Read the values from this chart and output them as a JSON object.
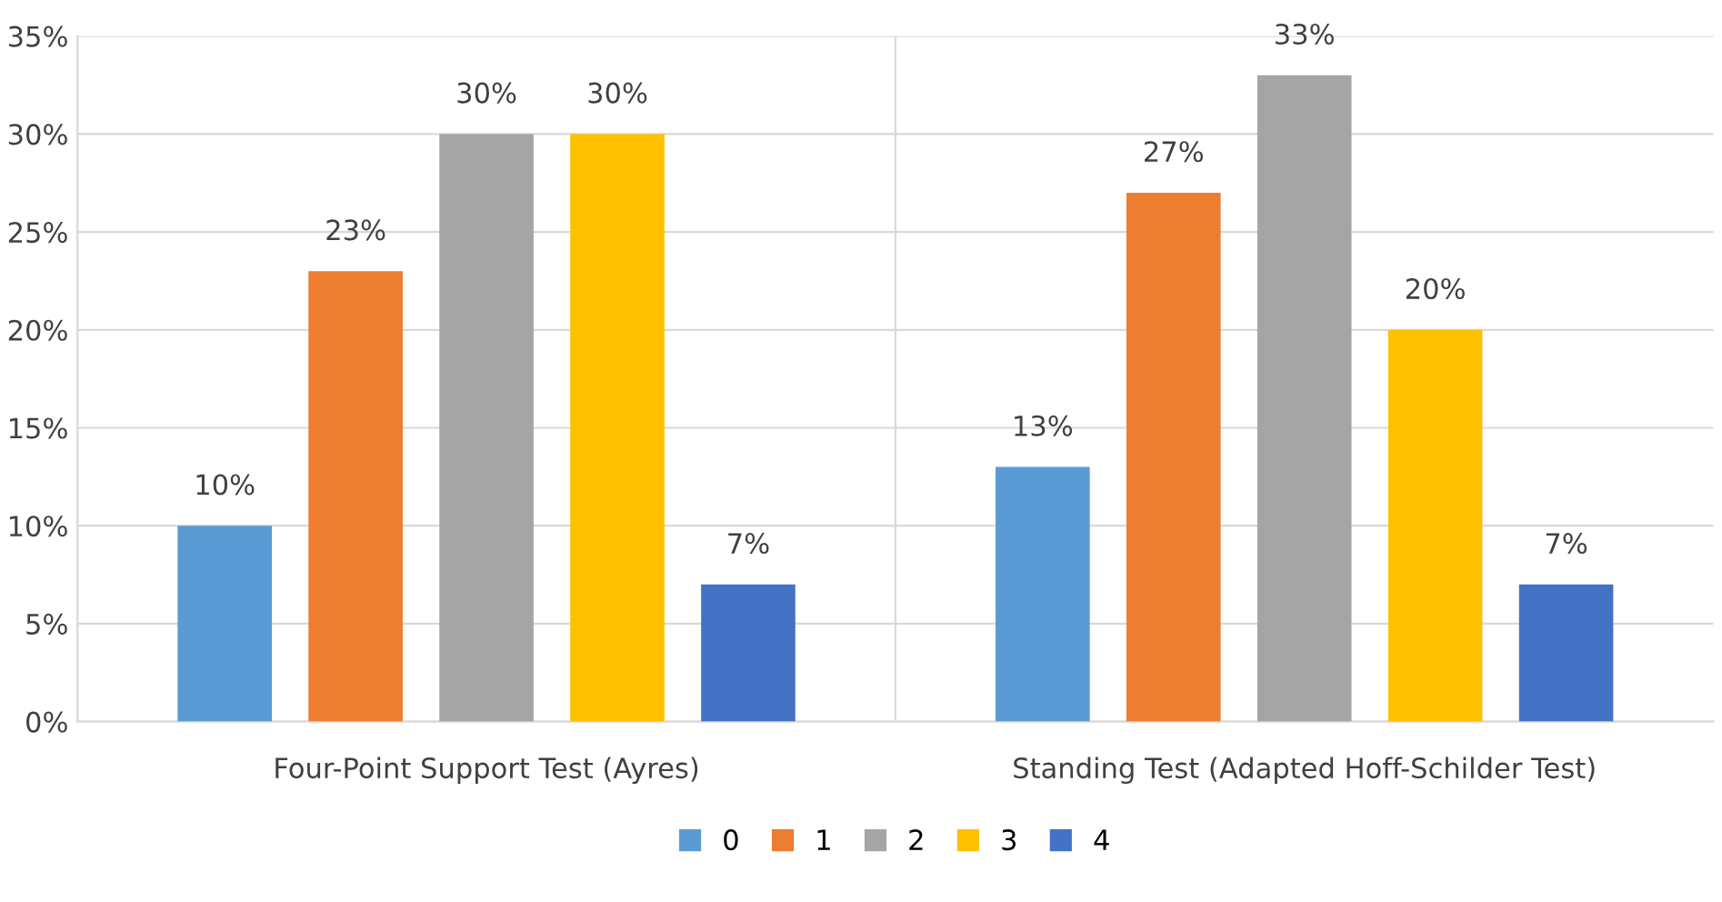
{
  "chart_data": {
    "type": "bar",
    "categories": [
      "Four-Point Support Test (Ayres)",
      "Standing Test (Adapted Hoff-Schilder Test)"
    ],
    "series": [
      {
        "name": "0",
        "color": "#5b9bd5",
        "values": [
          10,
          13
        ],
        "value_labels": [
          "10%",
          "13%"
        ]
      },
      {
        "name": "1",
        "color": "#ed7d31",
        "values": [
          23,
          27
        ],
        "value_labels": [
          "23%",
          "27%"
        ]
      },
      {
        "name": "2",
        "color": "#a5a5a5",
        "values": [
          30,
          33
        ],
        "value_labels": [
          "30%",
          "33%"
        ]
      },
      {
        "name": "3",
        "color": "#ffc000",
        "values": [
          30,
          20
        ],
        "value_labels": [
          "30%",
          "20%"
        ]
      },
      {
        "name": "4",
        "color": "#4472c4",
        "values": [
          7,
          7
        ],
        "value_labels": [
          "7%",
          "7%"
        ]
      }
    ],
    "ylim": [
      0,
      35
    ],
    "yticks": [
      {
        "value": 0,
        "label": "0%"
      },
      {
        "value": 5,
        "label": "5%"
      },
      {
        "value": 10,
        "label": "10%"
      },
      {
        "value": 15,
        "label": "15%"
      },
      {
        "value": 20,
        "label": "20%"
      },
      {
        "value": 25,
        "label": "25%"
      },
      {
        "value": 30,
        "label": "30%"
      },
      {
        "value": 35,
        "label": "35%"
      }
    ],
    "grid": true,
    "legend": "bottom"
  }
}
